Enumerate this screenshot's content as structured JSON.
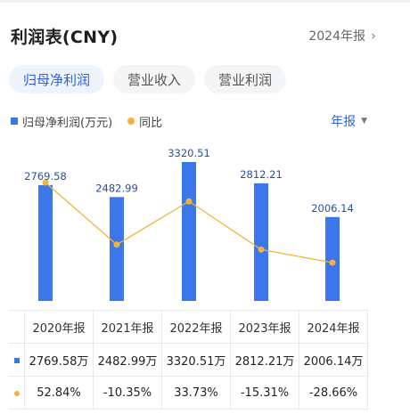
{
  "header": {
    "title": "利润表(CNY)",
    "period": "2024年报",
    "chevron_icon": "chevron-right-icon"
  },
  "tabs": [
    {
      "label": "归母净利润",
      "active": true
    },
    {
      "label": "营业收入",
      "active": false
    },
    {
      "label": "营业利润",
      "active": false
    }
  ],
  "legend": {
    "net_profit": "归母净利润(万元)",
    "yoy": "同比",
    "period_selector": "年报",
    "dropdown_icon": "triangle-down-icon"
  },
  "colors": {
    "bar": "#3b76ea",
    "line": "#f4b23b",
    "accent": "#2f64d6",
    "positive": "#e64545",
    "negative": "#24a35a"
  },
  "chart_data": {
    "type": "bar",
    "categories": [
      "2020年报",
      "2021年报",
      "2022年报",
      "2023年报",
      "2024年报"
    ],
    "series": [
      {
        "name": "归母净利润(万元)",
        "type": "bar",
        "values": [
          2769.58,
          2482.99,
          3320.51,
          2812.21,
          2006.14
        ],
        "labels": [
          "2769.58",
          "2482.99",
          "3320.51",
          "2812.21",
          "2006.14"
        ]
      },
      {
        "name": "同比",
        "type": "line",
        "values": [
          52.84,
          -10.35,
          33.73,
          -15.31,
          -28.66
        ]
      }
    ],
    "ylim": [
      0,
      3500
    ]
  },
  "table": {
    "headers": [
      "2020年报",
      "2021年报",
      "2022年报",
      "2023年报",
      "2024年报"
    ],
    "net_profit": [
      "2769.58万",
      "2482.99万",
      "3320.51万",
      "2812.21万",
      "2006.14万"
    ],
    "yoy": [
      "52.84%",
      "-10.35%",
      "33.73%",
      "-15.31%",
      "-28.66%"
    ]
  }
}
